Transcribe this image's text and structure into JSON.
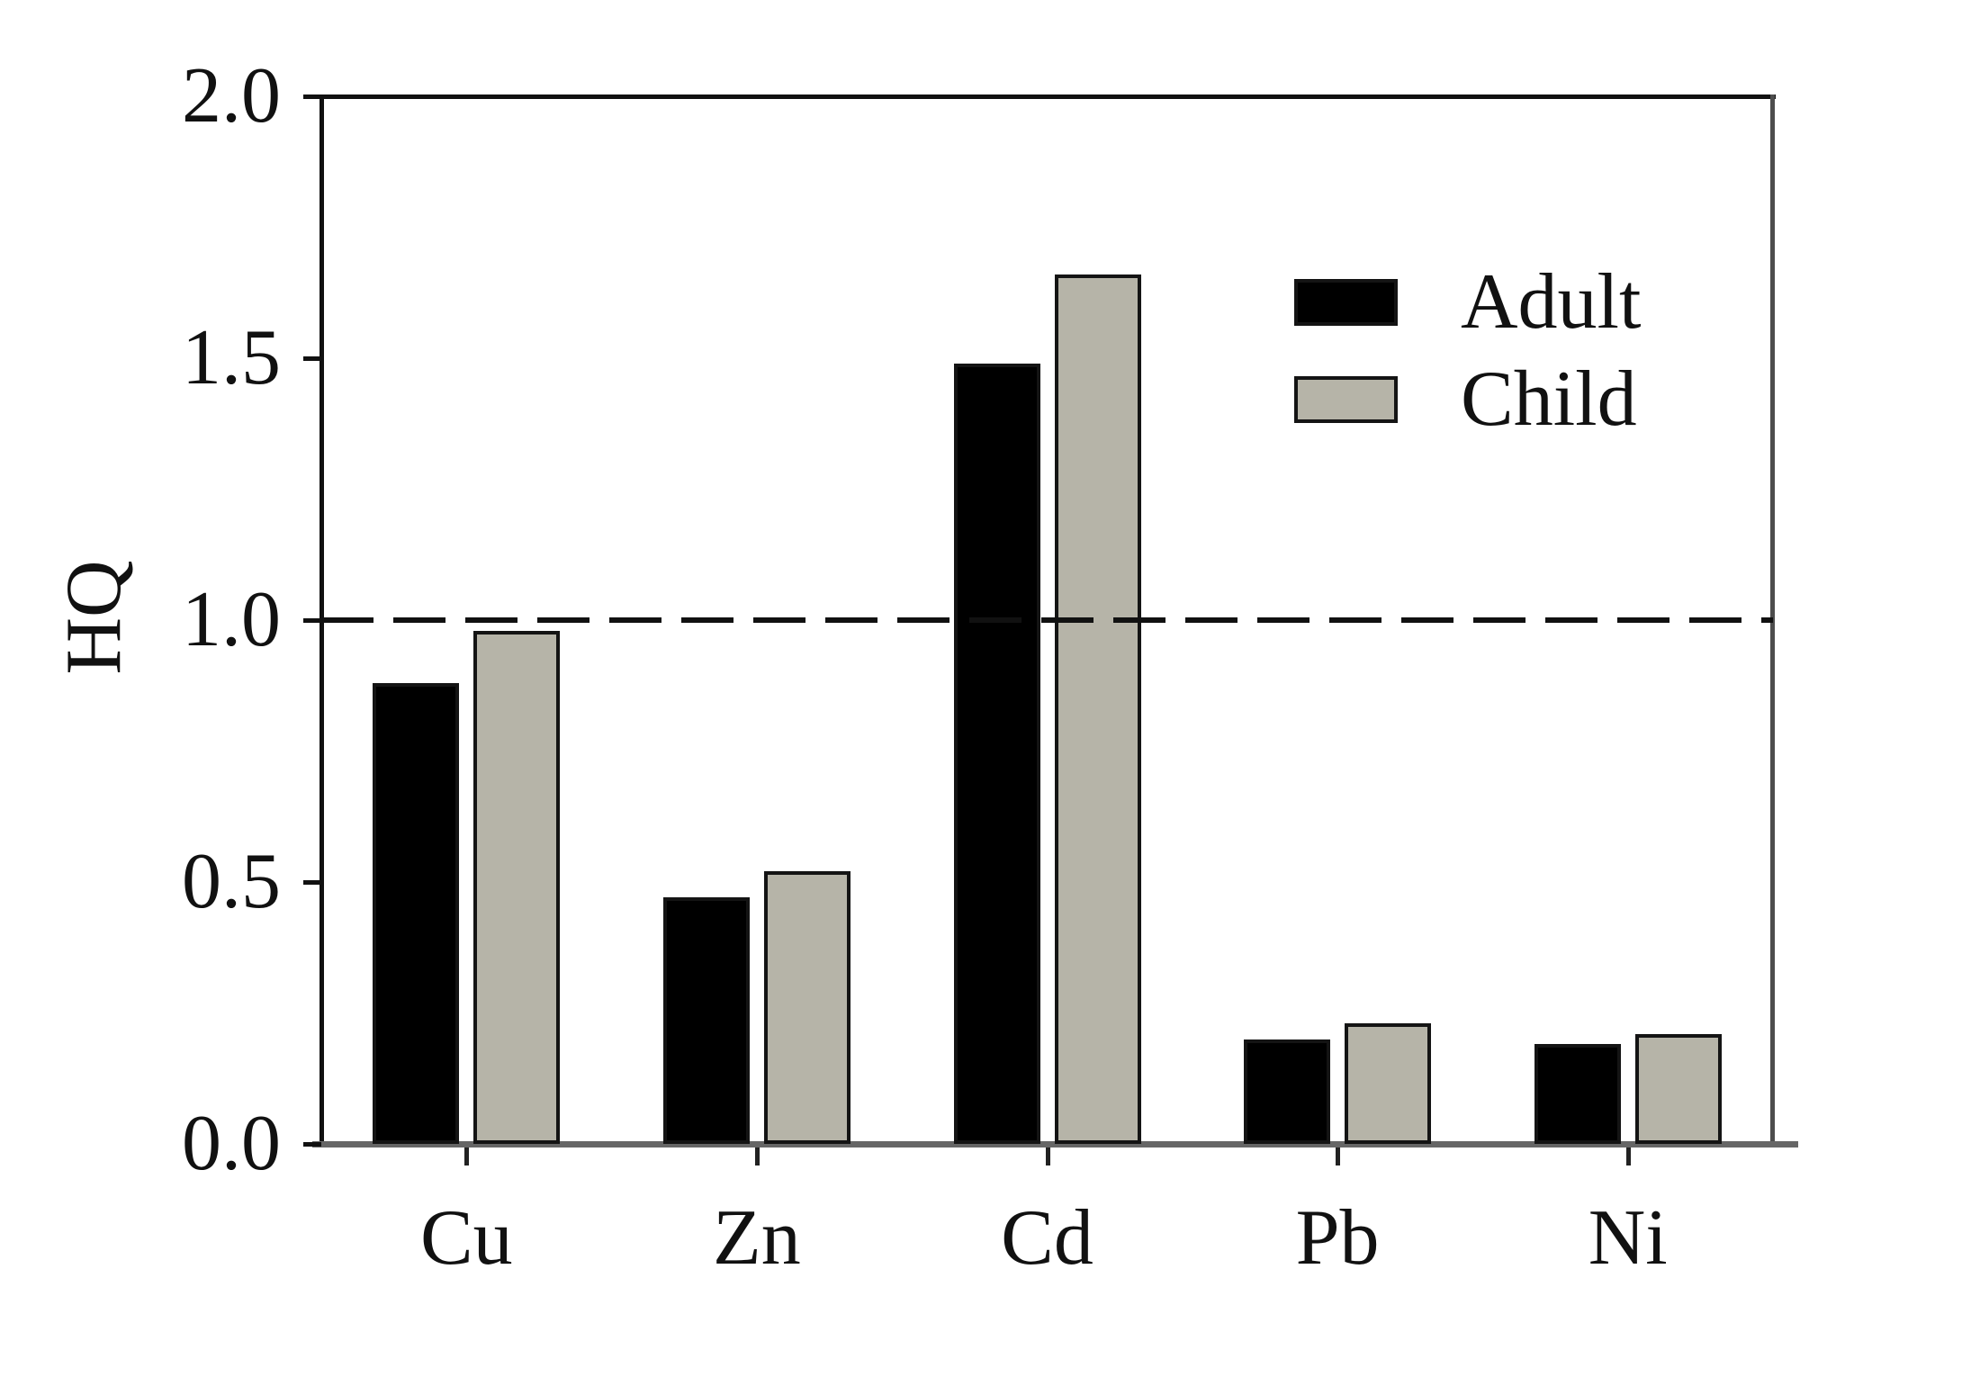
{
  "figure": {
    "background": "#ffffff",
    "frame_color": "#111111",
    "baseline_color": "#666666"
  },
  "chart_data": {
    "type": "bar",
    "title": "",
    "xlabel": "",
    "ylabel": "HQ",
    "categories": [
      "Cu",
      "Zn",
      "Cd",
      "Pb",
      "Ni"
    ],
    "series": [
      {
        "name": "Adult",
        "color": "#000000",
        "values": [
          0.88,
          0.47,
          1.49,
          0.2,
          0.19
        ]
      },
      {
        "name": "Child",
        "color": "#b6b4a8",
        "values": [
          0.98,
          0.52,
          1.66,
          0.23,
          0.21
        ]
      }
    ],
    "ylim": [
      0,
      2
    ],
    "yticks": [
      0.0,
      0.5,
      1.0,
      1.5,
      2.0
    ],
    "ytick_decimals": 1,
    "reference_line": {
      "value": 1.0,
      "style": "dashed",
      "color": "#111111"
    },
    "grid": false,
    "legend": {
      "position": "top-right",
      "entries": [
        "Adult",
        "Child"
      ]
    },
    "bar_outline_color": "#141414"
  }
}
